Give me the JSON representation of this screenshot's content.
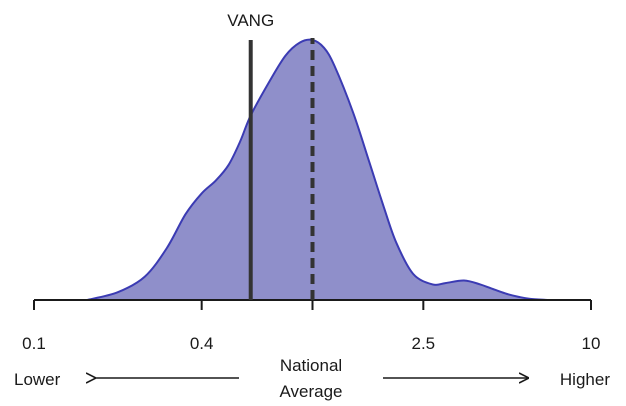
{
  "chart_data": {
    "type": "area",
    "description_kind": "density",
    "x_scale": "log",
    "xlim": [
      0.1,
      10
    ],
    "x": [
      0.155,
      0.2,
      0.25,
      0.3,
      0.35,
      0.4,
      0.45,
      0.5,
      0.55,
      0.6,
      0.7,
      0.8,
      0.9,
      1.0,
      1.1,
      1.2,
      1.4,
      1.6,
      1.8,
      2.0,
      2.3,
      2.7,
      3.0,
      3.5,
      4.0,
      4.5,
      5.0,
      5.5,
      6.0,
      7.0
    ],
    "y": [
      0.0,
      0.03,
      0.09,
      0.2,
      0.33,
      0.41,
      0.46,
      0.52,
      0.61,
      0.71,
      0.84,
      0.94,
      0.99,
      1.0,
      0.97,
      0.9,
      0.72,
      0.53,
      0.36,
      0.22,
      0.1,
      0.06,
      0.065,
      0.075,
      0.06,
      0.04,
      0.023,
      0.012,
      0.005,
      0.0
    ],
    "fill_color": "#8f8fca",
    "line_color": "#3b3bb3",
    "x_ticks": [
      0.1,
      0.4,
      1.0,
      2.5,
      10
    ],
    "x_tick_labels": [
      "0.1",
      "0.4",
      "",
      "2.5",
      "10"
    ],
    "markers": [
      {
        "label": "VANG",
        "x": 0.6,
        "style": "solid"
      },
      {
        "label": "",
        "x": 1.0,
        "style": "dashed"
      }
    ],
    "x_direction_left": "Lower",
    "x_direction_right": "Higher",
    "x_center_label": [
      "National",
      "Average"
    ],
    "marker_color": "#333333"
  }
}
